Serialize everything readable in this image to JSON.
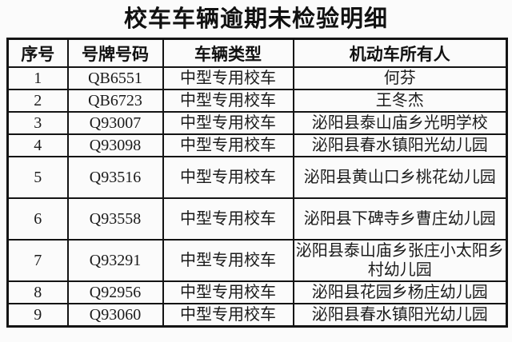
{
  "title": "校车车辆逾期未检验明细",
  "table": {
    "headers": {
      "no": "序号",
      "plate": "号牌号码",
      "type": "车辆类型",
      "owner": "机动车所有人"
    },
    "rows": [
      {
        "no": "1",
        "plate": "QB6551",
        "type": "中型专用校车",
        "owner": "何芬"
      },
      {
        "no": "2",
        "plate": "QB6723",
        "type": "中型专用校车",
        "owner": "王冬杰"
      },
      {
        "no": "3",
        "plate": "Q93007",
        "type": "中型专用校车",
        "owner": "泌阳县泰山庙乡光明学校"
      },
      {
        "no": "4",
        "plate": "Q93098",
        "type": "中型专用校车",
        "owner": "泌阳县春水镇阳光幼儿园"
      },
      {
        "no": "5",
        "plate": "Q93516",
        "type": "中型专用校车",
        "owner": "泌阳县黄山口乡桃花幼儿园"
      },
      {
        "no": "6",
        "plate": "Q93558",
        "type": "中型专用校车",
        "owner": "泌阳县下碑寺乡曹庄幼儿园"
      },
      {
        "no": "7",
        "plate": "Q93291",
        "type": "中型专用校车",
        "owner": "泌阳县泰山庙乡张庄小太阳乡村幼儿园"
      },
      {
        "no": "8",
        "plate": "Q92956",
        "type": "中型专用校车",
        "owner": "泌阳县花园乡杨庄幼儿园"
      },
      {
        "no": "9",
        "plate": "Q93060",
        "type": "中型专用校车",
        "owner": "泌阳县春水镇阳光幼儿园"
      }
    ]
  },
  "colors": {
    "background": "#fbfbfb",
    "border": "#141414",
    "text": "#1b1b1b"
  }
}
